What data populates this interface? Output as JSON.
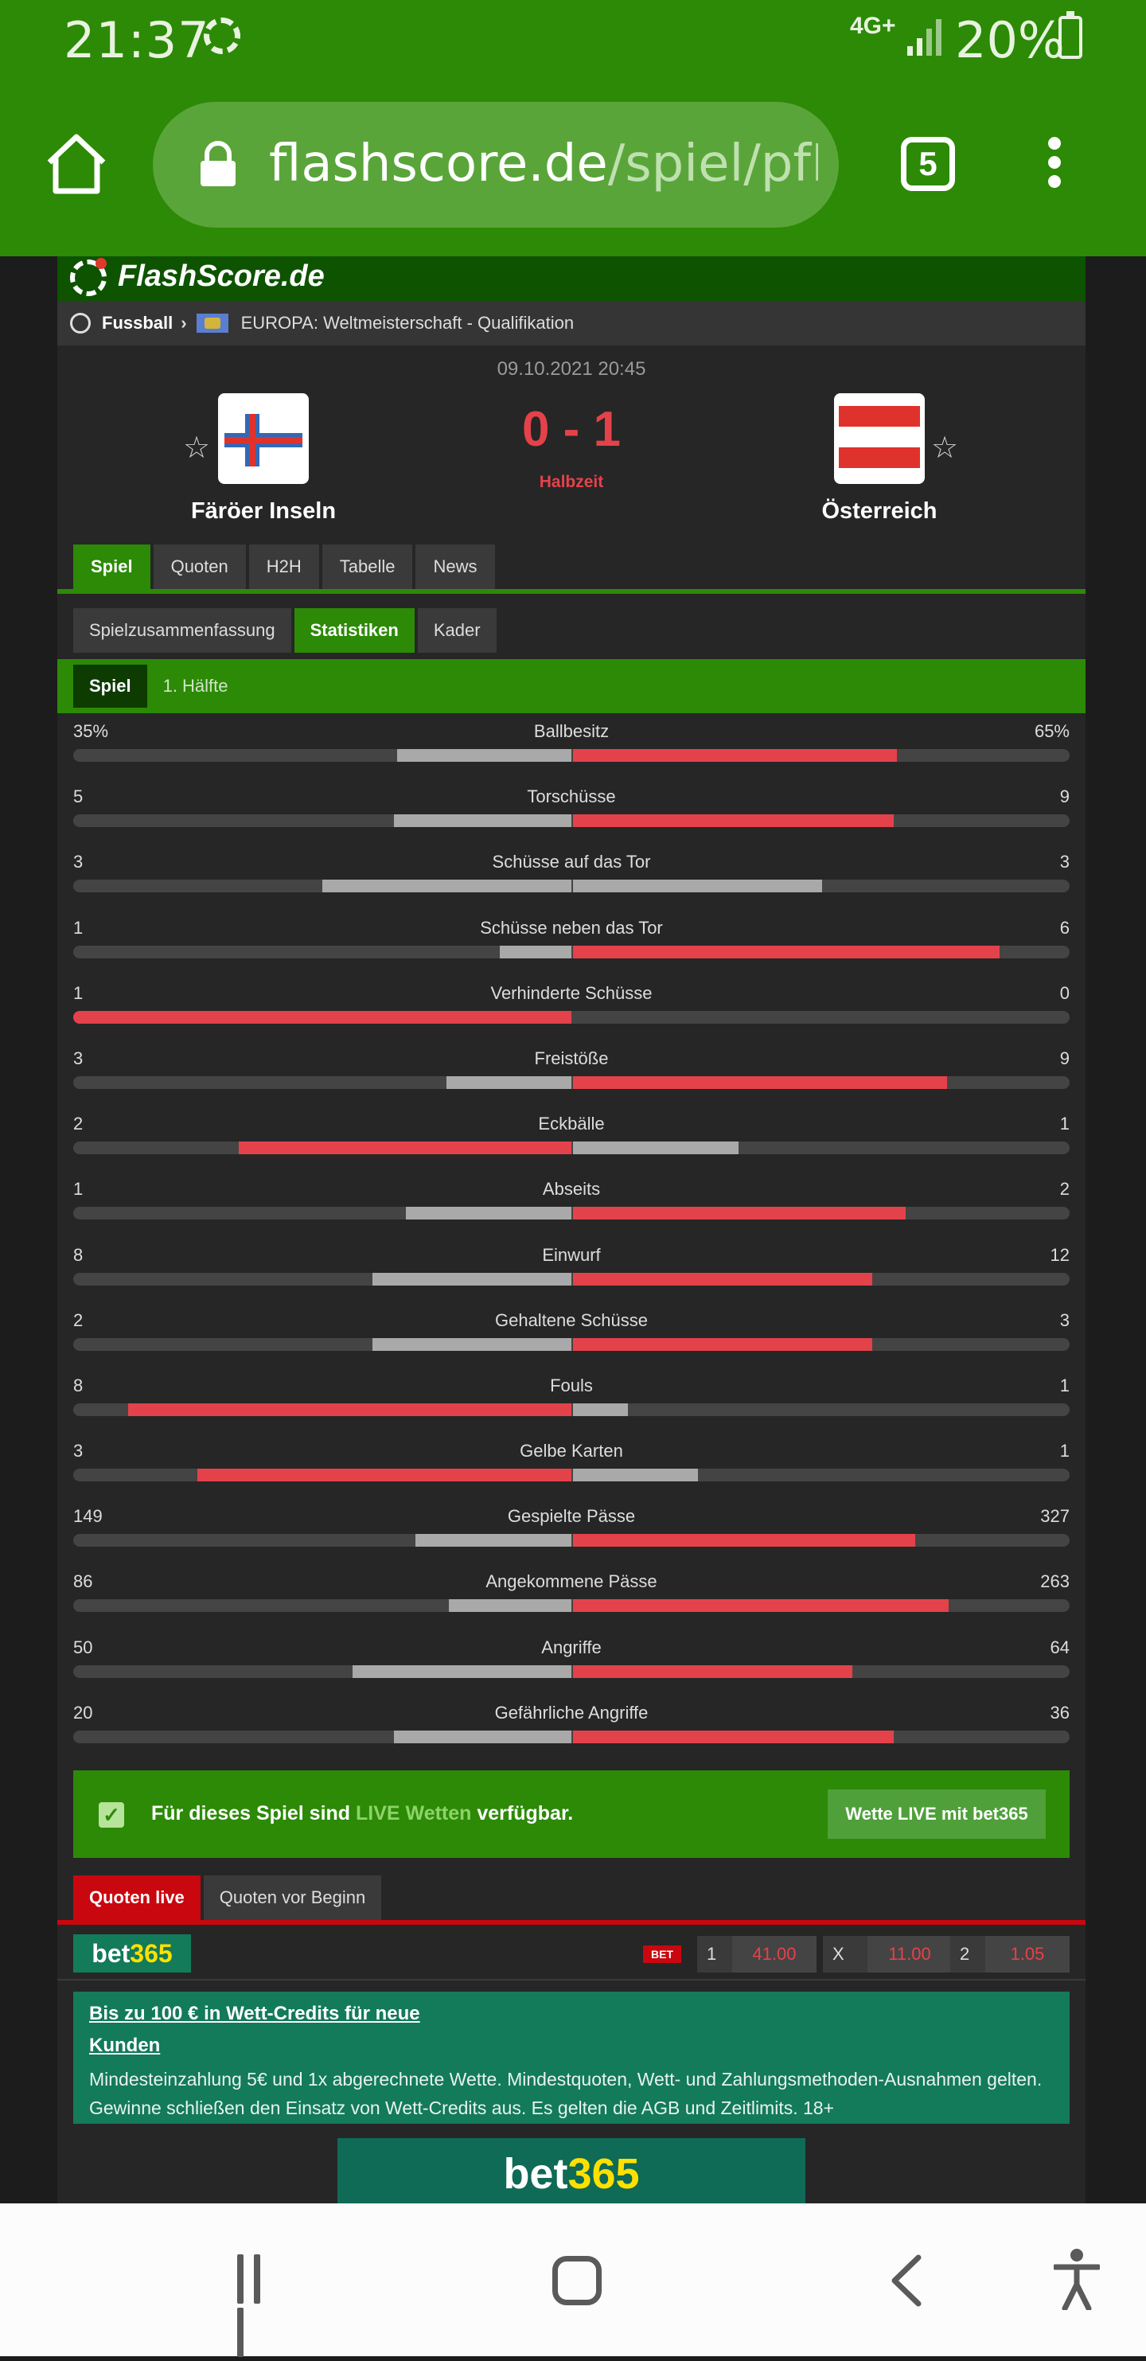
{
  "status_bar": {
    "time": "21:37",
    "network": "4G+",
    "battery": "20%"
  },
  "browser": {
    "url_host": "flashscore.de",
    "url_path": "/spiel/pfPv",
    "tab_count": "5"
  },
  "site": {
    "logo": "FlashScore.de"
  },
  "breadcrumb": {
    "sport": "Fussball",
    "competition": "EUROPA: Weltmeisterschaft - Qualifikation"
  },
  "match": {
    "date": "09.10.2021 20:45",
    "score": "0 - 1",
    "status": "Halbzeit",
    "home": {
      "name": "Färöer Inseln",
      "star": "☆"
    },
    "away": {
      "name": "Österreich",
      "star": "☆"
    }
  },
  "main_tabs": [
    "Spiel",
    "Quoten",
    "H2H",
    "Tabelle",
    "News"
  ],
  "sub_tabs": [
    "Spielzusammenfassung",
    "Statistiken",
    "Kader"
  ],
  "period_tabs": [
    "Spiel",
    "1. Hälfte"
  ],
  "colors": {
    "brand_green": "#2c8a06",
    "highlight_red": "#e4424a",
    "neutral_bar": "#a9a9a9"
  },
  "stats": [
    {
      "name": "Ballbesitz",
      "home": "35%",
      "away": "65%",
      "home_share": 0.35,
      "away_share": 0.65,
      "leader": "away"
    },
    {
      "name": "Torschüsse",
      "home": "5",
      "away": "9",
      "home_share": 0.357,
      "away_share": 0.643,
      "leader": "away"
    },
    {
      "name": "Schüsse auf das Tor",
      "home": "3",
      "away": "3",
      "home_share": 0.5,
      "away_share": 0.5,
      "leader": "none"
    },
    {
      "name": "Schüsse neben das Tor",
      "home": "1",
      "away": "6",
      "home_share": 0.143,
      "away_share": 0.857,
      "leader": "away"
    },
    {
      "name": "Verhinderte Schüsse",
      "home": "1",
      "away": "0",
      "home_share": 1.0,
      "away_share": 0.0,
      "leader": "home"
    },
    {
      "name": "Freistöße",
      "home": "3",
      "away": "9",
      "home_share": 0.25,
      "away_share": 0.75,
      "leader": "away"
    },
    {
      "name": "Eckbälle",
      "home": "2",
      "away": "1",
      "home_share": 0.667,
      "away_share": 0.333,
      "leader": "home"
    },
    {
      "name": "Abseits",
      "home": "1",
      "away": "2",
      "home_share": 0.333,
      "away_share": 0.667,
      "leader": "away"
    },
    {
      "name": "Einwurf",
      "home": "8",
      "away": "12",
      "home_share": 0.4,
      "away_share": 0.6,
      "leader": "away"
    },
    {
      "name": "Gehaltene Schüsse",
      "home": "2",
      "away": "3",
      "home_share": 0.4,
      "away_share": 0.6,
      "leader": "away"
    },
    {
      "name": "Fouls",
      "home": "8",
      "away": "1",
      "home_share": 0.889,
      "away_share": 0.111,
      "leader": "home"
    },
    {
      "name": "Gelbe Karten",
      "home": "3",
      "away": "1",
      "home_share": 0.75,
      "away_share": 0.25,
      "leader": "home"
    },
    {
      "name": "Gespielte Pässe",
      "home": "149",
      "away": "327",
      "home_share": 0.313,
      "away_share": 0.687,
      "leader": "away"
    },
    {
      "name": "Angekommene Pässe",
      "home": "86",
      "away": "263",
      "home_share": 0.246,
      "away_share": 0.754,
      "leader": "away"
    },
    {
      "name": "Angriffe",
      "home": "50",
      "away": "64",
      "home_share": 0.439,
      "away_share": 0.561,
      "leader": "away"
    },
    {
      "name": "Gefährliche Angriffe",
      "home": "20",
      "away": "36",
      "home_share": 0.357,
      "away_share": 0.643,
      "leader": "away"
    }
  ],
  "live_betting": {
    "check": "✓",
    "text_prefix": "Für dieses Spiel sind",
    "text_highlight": "LIVE Wetten",
    "text_suffix": "verfügbar.",
    "button": "Wette LIVE mit bet365"
  },
  "odds_tabs": [
    "Quoten live",
    "Quoten vor Beginn"
  ],
  "odds": {
    "bookmaker_a": "bet",
    "bookmaker_b": "365",
    "badge": "BET",
    "items": [
      {
        "key": "1",
        "value": "41.00"
      },
      {
        "key": "X",
        "value": "11.00"
      },
      {
        "key": "2",
        "value": "1.05"
      }
    ]
  },
  "promo": {
    "headline_1": "Bis zu 100 € in Wett-Credits für neue",
    "headline_2": "Kunden",
    "body": "Mindesteinzahlung 5€ und 1x abgerechnete Wette. Mindestquoten, Wett- und Zahlungsmethoden-Ausnahmen gelten. Gewinne schließen den Einsatz von Wett-Credits aus. Es gelten die AGB und Zeitlimits. 18+"
  },
  "banner": {
    "a": "bet",
    "b": "365"
  }
}
